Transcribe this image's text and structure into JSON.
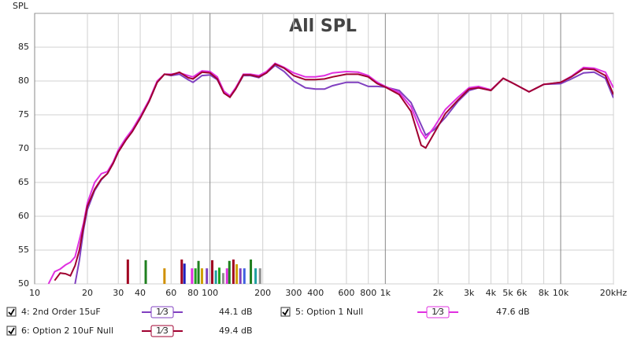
{
  "chart_data": {
    "type": "line",
    "title": "All SPL",
    "y_label": "SPL",
    "xscale": "log",
    "grid": true,
    "xlim": [
      10,
      20000
    ],
    "ylim": [
      50,
      90
    ],
    "xticks": [
      10,
      20,
      30,
      40,
      60,
      80,
      100,
      200,
      300,
      400,
      600,
      800,
      {
        "value": 1000,
        "label": "1k"
      },
      {
        "value": 2000,
        "label": "2k"
      },
      {
        "value": 3000,
        "label": "3k"
      },
      {
        "value": 4000,
        "label": "4k"
      },
      {
        "value": 5000,
        "label": "5k"
      },
      {
        "value": 6000,
        "label": "6k"
      },
      {
        "value": 8000,
        "label": "8k"
      },
      {
        "value": 10000,
        "label": "10k"
      },
      {
        "value": 20000,
        "label": "20kHz"
      }
    ],
    "yticks": [
      50,
      55,
      60,
      65,
      70,
      75,
      80,
      85
    ],
    "x": [
      12,
      13,
      14,
      15,
      16,
      17,
      18,
      19,
      20,
      22,
      24,
      26,
      28,
      30,
      33,
      36,
      40,
      45,
      50,
      55,
      60,
      67,
      75,
      80,
      90,
      100,
      110,
      120,
      130,
      140,
      155,
      170,
      190,
      210,
      235,
      265,
      300,
      350,
      400,
      450,
      500,
      600,
      700,
      800,
      900,
      1000,
      1200,
      1400,
      1600,
      1700,
      1900,
      2200,
      2600,
      3000,
      3400,
      4000,
      4700,
      5400,
      6600,
      8000,
      10000,
      11500,
      13500,
      15500,
      18000,
      20000
    ],
    "series": [
      {
        "name": "4: 2nd Order 15uF",
        "color": "#8040c0",
        "smoothing": "1⁄3",
        "level": 44.1,
        "level_label": "44.1 dB",
        "values": [
          null,
          null,
          null,
          null,
          null,
          50,
          53.5,
          58,
          61,
          63.8,
          65.4,
          66.3,
          67.8,
          69.5,
          71.2,
          72.5,
          74.5,
          77,
          79.8,
          81,
          80.8,
          81,
          80.2,
          79.8,
          80.8,
          80.9,
          80.2,
          78.3,
          77.6,
          78.8,
          80.8,
          80.8,
          80.5,
          81.2,
          82.3,
          81.4,
          80,
          79,
          78.8,
          78.8,
          79.3,
          79.8,
          79.8,
          79.2,
          79.2,
          79.1,
          78.6,
          76.8,
          73.5,
          72,
          72.8,
          74.6,
          77,
          78.6,
          79,
          78.6,
          80.4,
          79.6,
          78.4,
          79.5,
          79.6,
          80.3,
          81.2,
          81.3,
          80.4,
          77.5
        ]
      },
      {
        "name": "5: Option 1 Null",
        "color": "#e030e0",
        "smoothing": "1⁄3",
        "level": 47.6,
        "level_label": "47.6 dB",
        "values": [
          50,
          51.8,
          52.2,
          52.8,
          53.2,
          54,
          56.5,
          59,
          62,
          65,
          66.3,
          66.6,
          68,
          69.8,
          71.5,
          72.8,
          74.8,
          77.2,
          80,
          81,
          81,
          81.2,
          80.8,
          80.6,
          81.5,
          81.4,
          80.6,
          78.5,
          77.8,
          79,
          81,
          81,
          80.8,
          81.4,
          82.6,
          82,
          81.2,
          80.6,
          80.6,
          80.8,
          81.2,
          81.4,
          81.3,
          80.8,
          79.8,
          79.2,
          78.3,
          76.2,
          72.5,
          71.5,
          73.2,
          75.8,
          77.6,
          79,
          79.2,
          78.7,
          80.4,
          79.6,
          78.4,
          79.5,
          79.8,
          80.7,
          82,
          81.9,
          81.3,
          79
        ]
      },
      {
        "name": "6: Option 2 10uF Null",
        "color": "#a00030",
        "smoothing": "1⁄3",
        "level": 49.4,
        "level_label": "49.4 dB",
        "values": [
          null,
          50.5,
          51.6,
          51.5,
          51.2,
          52.7,
          55,
          58.5,
          61.5,
          64,
          65.5,
          66.3,
          67.8,
          69.5,
          71.2,
          72.5,
          74.5,
          77,
          79.8,
          81,
          80.9,
          81.3,
          80.5,
          80.3,
          81.3,
          81.2,
          80.3,
          78.2,
          77.6,
          78.8,
          80.9,
          80.9,
          80.6,
          81.2,
          82.5,
          81.9,
          80.8,
          80.2,
          80.2,
          80.3,
          80.6,
          81,
          81,
          80.6,
          79.6,
          79.1,
          78,
          75.5,
          70.5,
          70.1,
          72.3,
          75.2,
          77.2,
          78.8,
          79,
          78.6,
          80.4,
          79.6,
          78.4,
          79.5,
          79.8,
          80.6,
          81.8,
          81.7,
          80.8,
          78
        ]
      }
    ],
    "markers": {
      "x": [
        34,
        43,
        55,
        69,
        71.5,
        79,
        82.6,
        86,
        90,
        96,
        103,
        108,
        113,
        119,
        125,
        129,
        136,
        142,
        149,
        157,
        171,
        182,
        193
      ],
      "values": [
        53.6,
        53.5,
        52.3,
        53.6,
        53,
        52.3,
        52.3,
        53.4,
        52.3,
        52.3,
        53.5,
        52,
        52.4,
        51.6,
        52.3,
        53.4,
        53.6,
        52.9,
        52.3,
        52.3,
        53.6,
        52.3,
        52.3
      ],
      "colors": [
        "#a00020",
        "#208020",
        "#d09000",
        "#a00020",
        "#2020c0",
        "#e030e0",
        "#20a020",
        "#208020",
        "#d0a000",
        "#8040c0",
        "#a00020",
        "#20a0a0",
        "#20a020",
        "#909090",
        "#e030e0",
        "#208020",
        "#a00020",
        "#d0a000",
        "#8040c0",
        "#4060e0",
        "#208020",
        "#20a0a0",
        "#909090"
      ]
    }
  }
}
